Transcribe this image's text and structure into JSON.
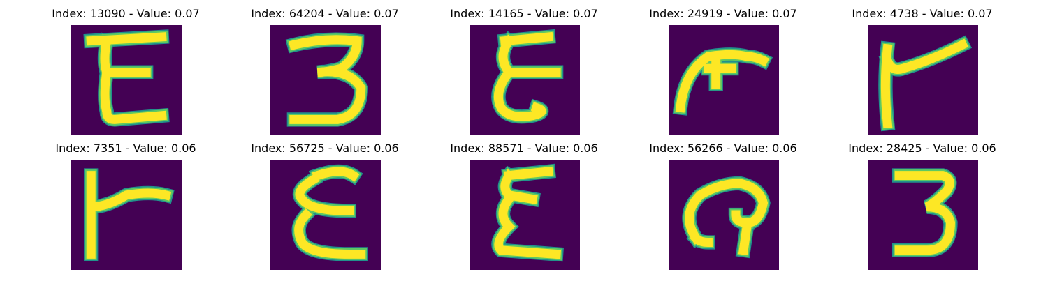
{
  "figure": {
    "panels": [
      {
        "title": "Index: 13090 - Value: 0.07",
        "glyph": "E-angular"
      },
      {
        "title": "Index: 64204 - Value: 0.07",
        "glyph": "3-flat-top"
      },
      {
        "title": "Index: 14165 - Value: 0.07",
        "glyph": "E-curly"
      },
      {
        "title": "Index: 24919 - Value: 0.07",
        "glyph": "hook-shape"
      },
      {
        "title": "Index: 4738 - Value: 0.07",
        "glyph": "r-shape"
      },
      {
        "title": "Index: 7351 - Value: 0.06",
        "glyph": "r-shape-bold"
      },
      {
        "title": "Index: 56725 - Value: 0.06",
        "glyph": "E-curly-bold"
      },
      {
        "title": "Index: 88571 - Value: 0.06",
        "glyph": "E-sigma"
      },
      {
        "title": "Index: 56266 - Value: 0.06",
        "glyph": "loop-shape"
      },
      {
        "title": "Index: 28425 - Value: 0.06",
        "glyph": "3-digit"
      }
    ],
    "colors": {
      "background": "#440154",
      "stroke_outer": "#21918c",
      "stroke_mid": "#5ec962",
      "stroke_core": "#fde725"
    }
  }
}
